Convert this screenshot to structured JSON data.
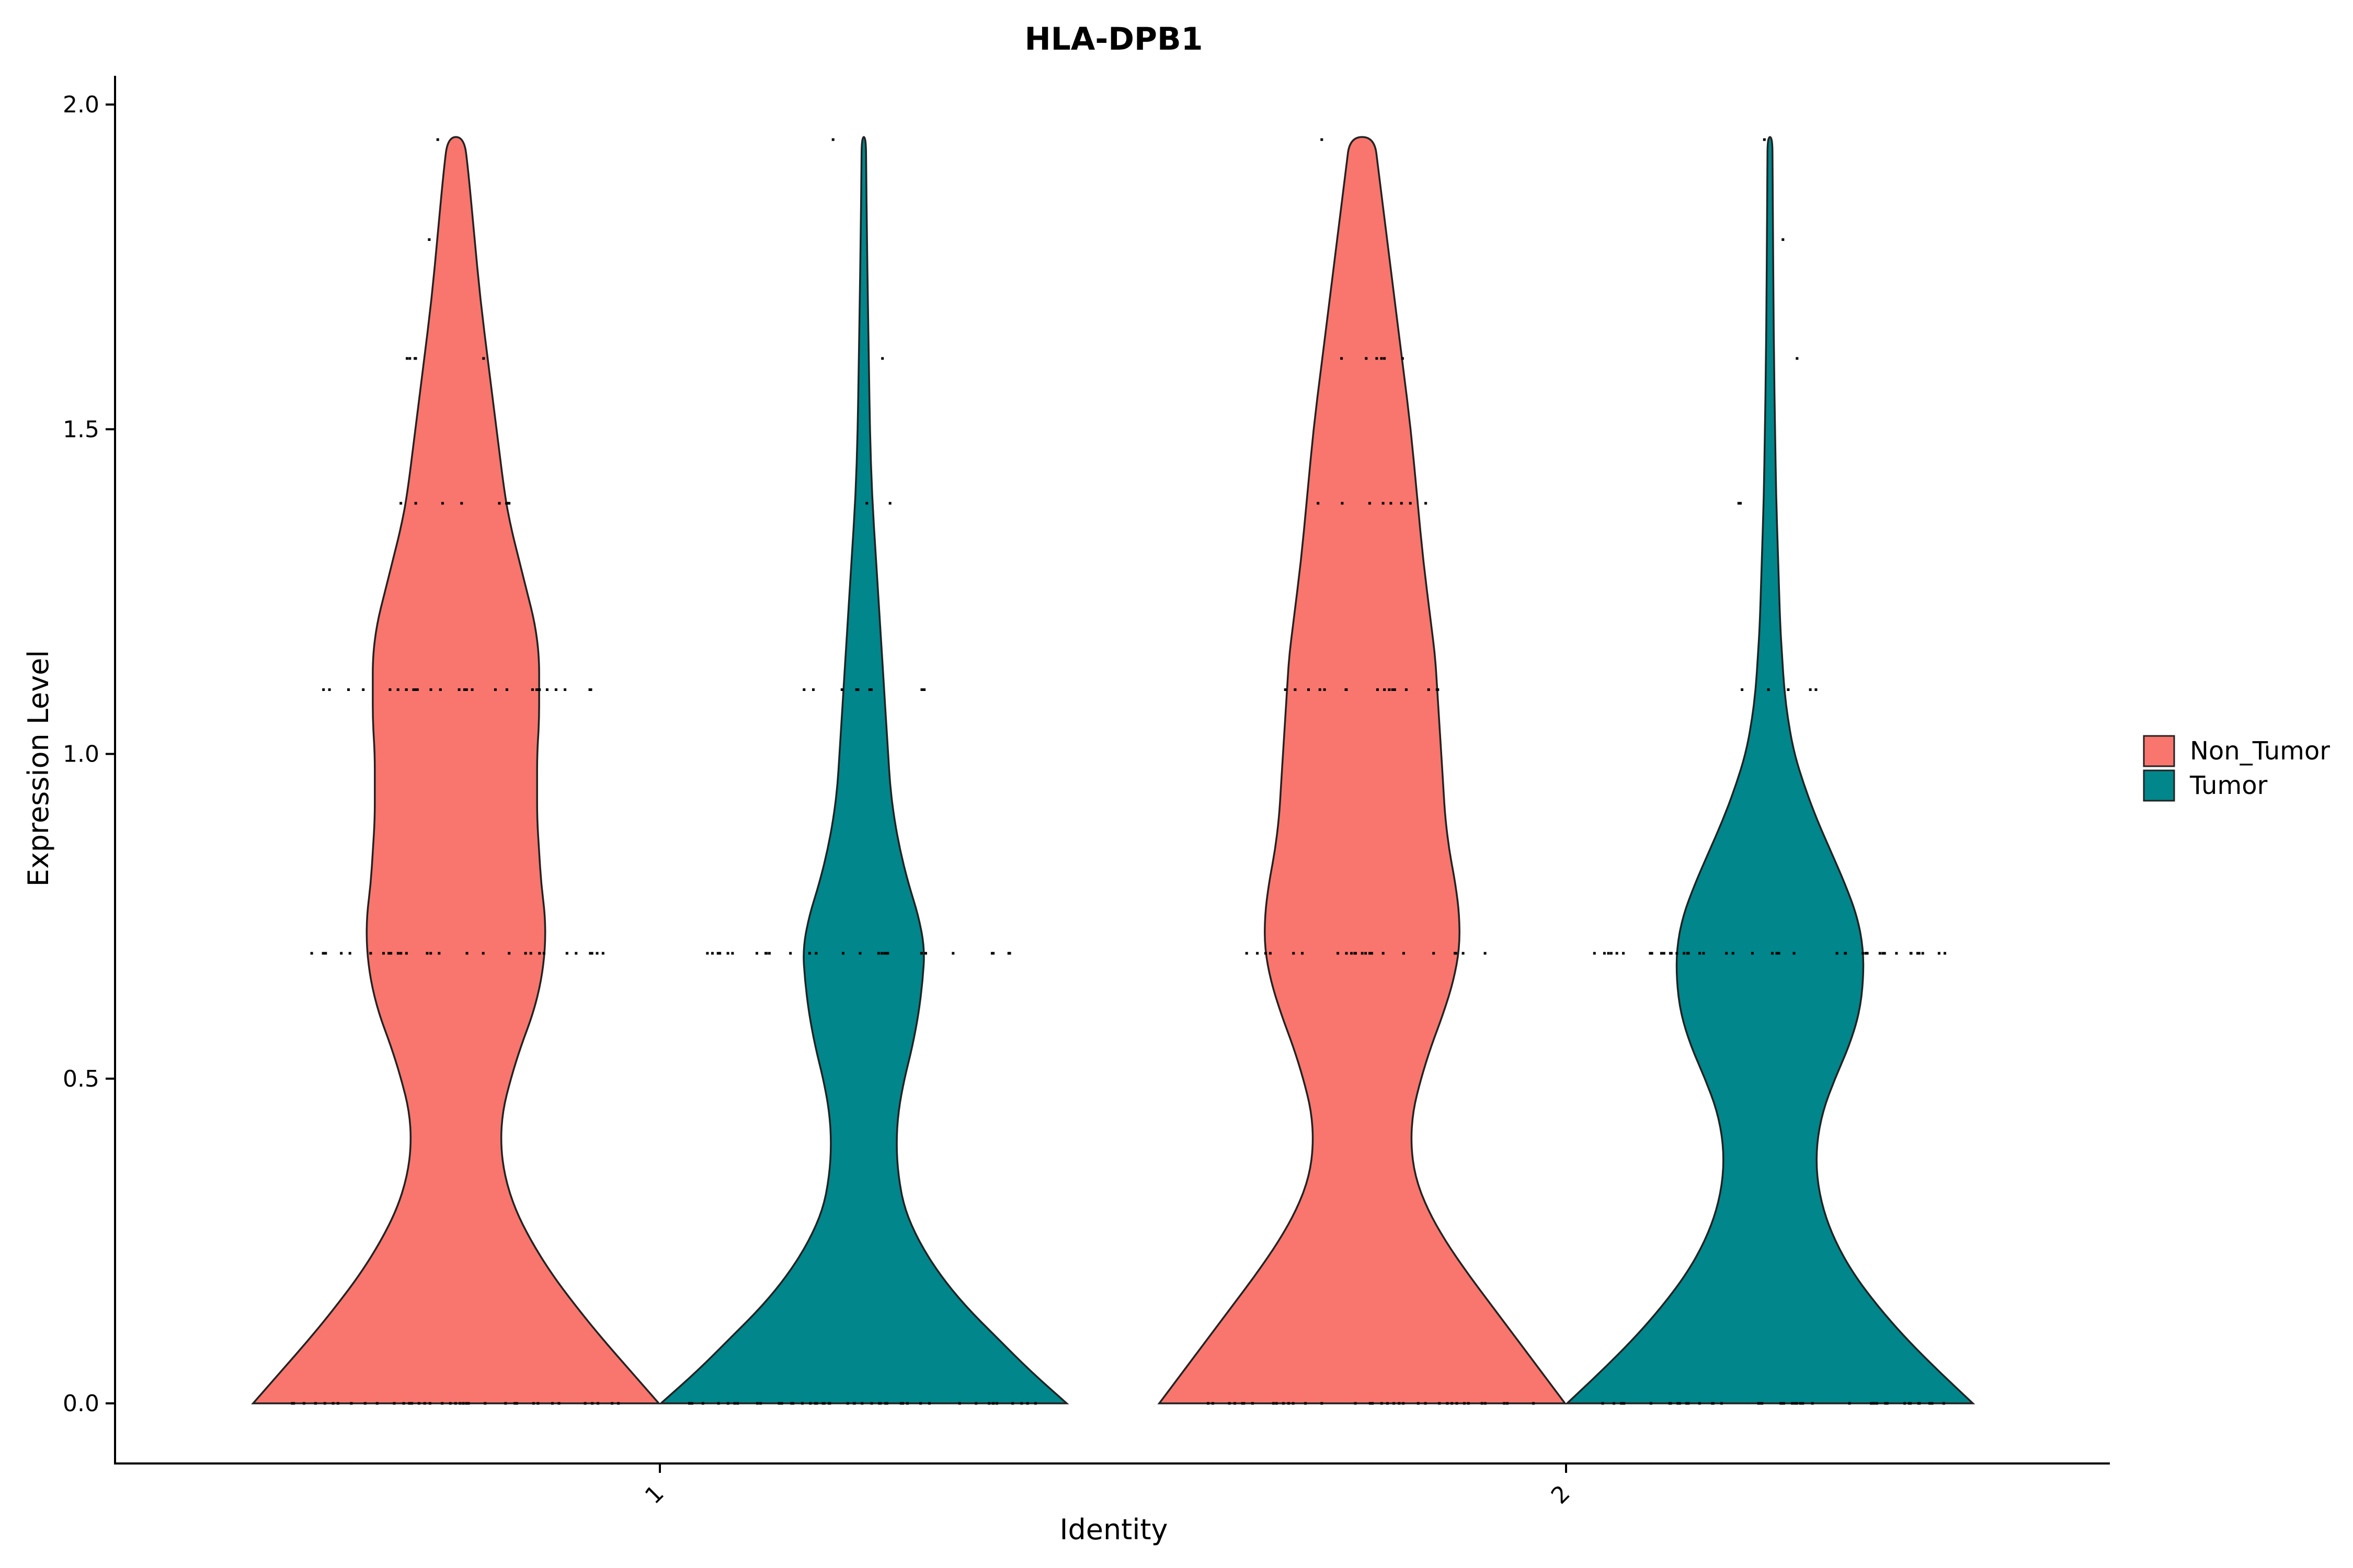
{
  "chart_data": {
    "type": "violin",
    "title": "HLA-DPB1",
    "xlabel": "Identity",
    "ylabel": "Expression Level",
    "ylim": [
      -0.1,
      2.05
    ],
    "yticks": [
      0.0,
      0.5,
      1.0,
      1.5,
      2.0
    ],
    "ytick_labels": [
      "0.0",
      "0.5",
      "1.0",
      "1.5",
      "2.0"
    ],
    "categories": [
      "1",
      "2"
    ],
    "legend": {
      "position": "right",
      "entries": [
        {
          "name": "Non_Tumor",
          "color": "#F8766D"
        },
        {
          "name": "Tumor",
          "color": "#00868B"
        }
      ]
    },
    "series": [
      {
        "name": "Non_Tumor",
        "color": "#F8766D",
        "groups": [
          {
            "category": "1",
            "max": 1.95,
            "density": [
              [
                0.0,
                1.0
              ],
              [
                0.05,
                0.86
              ],
              [
                0.1,
                0.72
              ],
              [
                0.15,
                0.59
              ],
              [
                0.2,
                0.47
              ],
              [
                0.25,
                0.37
              ],
              [
                0.3,
                0.29
              ],
              [
                0.35,
                0.24
              ],
              [
                0.4,
                0.22
              ],
              [
                0.45,
                0.23
              ],
              [
                0.5,
                0.27
              ],
              [
                0.55,
                0.32
              ],
              [
                0.6,
                0.38
              ],
              [
                0.65,
                0.42
              ],
              [
                0.7,
                0.44
              ],
              [
                0.75,
                0.44
              ],
              [
                0.8,
                0.42
              ],
              [
                0.85,
                0.41
              ],
              [
                0.9,
                0.4
              ],
              [
                0.95,
                0.4
              ],
              [
                1.0,
                0.4
              ],
              [
                1.05,
                0.41
              ],
              [
                1.1,
                0.41
              ],
              [
                1.15,
                0.41
              ],
              [
                1.2,
                0.39
              ],
              [
                1.25,
                0.35
              ],
              [
                1.3,
                0.31
              ],
              [
                1.35,
                0.27
              ],
              [
                1.4,
                0.24
              ],
              [
                1.5,
                0.2
              ],
              [
                1.6,
                0.16
              ],
              [
                1.7,
                0.12
              ],
              [
                1.8,
                0.09
              ],
              [
                1.9,
                0.06
              ],
              [
                1.95,
                0.04
              ]
            ],
            "points": [
              {
                "y": 0.0,
                "n": 40
              },
              {
                "y": 0.693,
                "n": 28
              },
              {
                "y": 1.099,
                "n": 30
              },
              {
                "y": 1.386,
                "n": 8
              },
              {
                "y": 1.609,
                "n": 5
              },
              {
                "y": 1.792,
                "n": 1
              },
              {
                "y": 1.946,
                "n": 1
              }
            ]
          },
          {
            "category": "2",
            "max": 1.95,
            "density": [
              [
                0.0,
                1.0
              ],
              [
                0.05,
                0.88
              ],
              [
                0.1,
                0.76
              ],
              [
                0.15,
                0.64
              ],
              [
                0.2,
                0.52
              ],
              [
                0.25,
                0.41
              ],
              [
                0.3,
                0.32
              ],
              [
                0.35,
                0.26
              ],
              [
                0.4,
                0.24
              ],
              [
                0.45,
                0.25
              ],
              [
                0.5,
                0.29
              ],
              [
                0.55,
                0.34
              ],
              [
                0.6,
                0.4
              ],
              [
                0.65,
                0.45
              ],
              [
                0.7,
                0.48
              ],
              [
                0.75,
                0.48
              ],
              [
                0.8,
                0.46
              ],
              [
                0.85,
                0.43
              ],
              [
                0.9,
                0.41
              ],
              [
                0.95,
                0.4
              ],
              [
                1.0,
                0.39
              ],
              [
                1.05,
                0.38
              ],
              [
                1.1,
                0.37
              ],
              [
                1.15,
                0.36
              ],
              [
                1.2,
                0.34
              ],
              [
                1.3,
                0.3
              ],
              [
                1.4,
                0.27
              ],
              [
                1.5,
                0.24
              ],
              [
                1.6,
                0.2
              ],
              [
                1.7,
                0.16
              ],
              [
                1.8,
                0.12
              ],
              [
                1.9,
                0.08
              ],
              [
                1.95,
                0.06
              ]
            ],
            "points": [
              {
                "y": 0.0,
                "n": 35
              },
              {
                "y": 0.693,
                "n": 22
              },
              {
                "y": 1.099,
                "n": 16
              },
              {
                "y": 1.386,
                "n": 8
              },
              {
                "y": 1.609,
                "n": 6
              },
              {
                "y": 1.946,
                "n": 1
              }
            ]
          }
        ]
      },
      {
        "name": "Tumor",
        "color": "#00868B",
        "groups": [
          {
            "category": "1",
            "max": 1.95,
            "density": [
              [
                0.0,
                1.0
              ],
              [
                0.05,
                0.82
              ],
              [
                0.1,
                0.66
              ],
              [
                0.15,
                0.5
              ],
              [
                0.2,
                0.37
              ],
              [
                0.25,
                0.27
              ],
              [
                0.3,
                0.2
              ],
              [
                0.35,
                0.17
              ],
              [
                0.4,
                0.16
              ],
              [
                0.45,
                0.17
              ],
              [
                0.5,
                0.2
              ],
              [
                0.55,
                0.24
              ],
              [
                0.6,
                0.27
              ],
              [
                0.65,
                0.29
              ],
              [
                0.7,
                0.3
              ],
              [
                0.75,
                0.27
              ],
              [
                0.8,
                0.22
              ],
              [
                0.85,
                0.18
              ],
              [
                0.9,
                0.15
              ],
              [
                0.95,
                0.13
              ],
              [
                1.0,
                0.12
              ],
              [
                1.05,
                0.11
              ],
              [
                1.1,
                0.1
              ],
              [
                1.15,
                0.09
              ],
              [
                1.2,
                0.08
              ],
              [
                1.3,
                0.06
              ],
              [
                1.4,
                0.04
              ],
              [
                1.5,
                0.03
              ],
              [
                1.6,
                0.025
              ],
              [
                1.7,
                0.02
              ],
              [
                1.8,
                0.015
              ],
              [
                1.9,
                0.012
              ],
              [
                1.95,
                0.01
              ]
            ],
            "points": [
              {
                "y": 0.0,
                "n": 45
              },
              {
                "y": 0.693,
                "n": 30
              },
              {
                "y": 1.099,
                "n": 9
              },
              {
                "y": 1.386,
                "n": 2
              },
              {
                "y": 1.609,
                "n": 1
              },
              {
                "y": 1.946,
                "n": 1
              }
            ]
          },
          {
            "category": "2",
            "max": 1.95,
            "density": [
              [
                0.0,
                1.0
              ],
              [
                0.05,
                0.83
              ],
              [
                0.1,
                0.67
              ],
              [
                0.15,
                0.53
              ],
              [
                0.2,
                0.41
              ],
              [
                0.25,
                0.32
              ],
              [
                0.3,
                0.26
              ],
              [
                0.35,
                0.23
              ],
              [
                0.4,
                0.23
              ],
              [
                0.45,
                0.26
              ],
              [
                0.5,
                0.32
              ],
              [
                0.55,
                0.39
              ],
              [
                0.6,
                0.44
              ],
              [
                0.65,
                0.46
              ],
              [
                0.7,
                0.46
              ],
              [
                0.75,
                0.43
              ],
              [
                0.8,
                0.37
              ],
              [
                0.85,
                0.3
              ],
              [
                0.9,
                0.23
              ],
              [
                0.95,
                0.17
              ],
              [
                1.0,
                0.12
              ],
              [
                1.05,
                0.09
              ],
              [
                1.1,
                0.07
              ],
              [
                1.15,
                0.06
              ],
              [
                1.2,
                0.05
              ],
              [
                1.3,
                0.04
              ],
              [
                1.4,
                0.03
              ],
              [
                1.5,
                0.025
              ],
              [
                1.6,
                0.02
              ],
              [
                1.7,
                0.017
              ],
              [
                1.8,
                0.015
              ],
              [
                1.9,
                0.013
              ],
              [
                1.95,
                0.012
              ]
            ],
            "points": [
              {
                "y": 0.0,
                "n": 45
              },
              {
                "y": 0.693,
                "n": 45
              },
              {
                "y": 1.099,
                "n": 5
              },
              {
                "y": 1.386,
                "n": 2
              },
              {
                "y": 1.609,
                "n": 1
              },
              {
                "y": 1.792,
                "n": 1
              },
              {
                "y": 1.946,
                "n": 1
              }
            ]
          }
        ]
      }
    ]
  }
}
